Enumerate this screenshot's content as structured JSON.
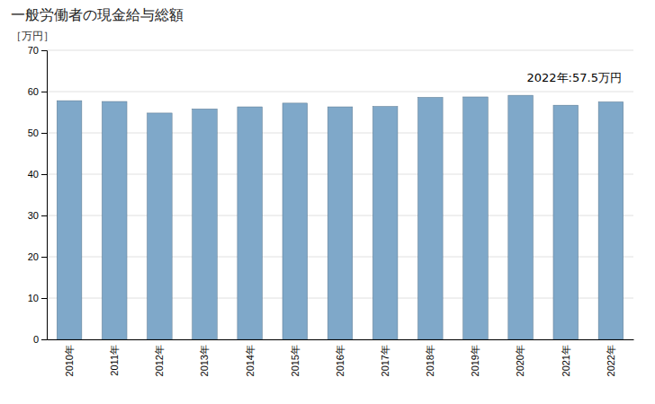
{
  "chart_data": {
    "type": "bar",
    "title": "一般労働者の現金給与総額",
    "ylabel": "［万円］",
    "annotation": "2022年:57.5万円",
    "categories": [
      "2010年",
      "2011年",
      "2012年",
      "2013年",
      "2014年",
      "2015年",
      "2016年",
      "2017年",
      "2018年",
      "2019年",
      "2020年",
      "2021年",
      "2022年"
    ],
    "values": [
      57.8,
      57.6,
      54.8,
      55.8,
      56.3,
      57.2,
      56.3,
      56.4,
      58.6,
      58.7,
      59.1,
      56.7,
      57.5
    ],
    "color": "#7fa8c9",
    "ylim": [
      0,
      70
    ],
    "yticks": [
      0,
      10,
      20,
      30,
      40,
      50,
      60,
      70
    ],
    "grid": true
  }
}
